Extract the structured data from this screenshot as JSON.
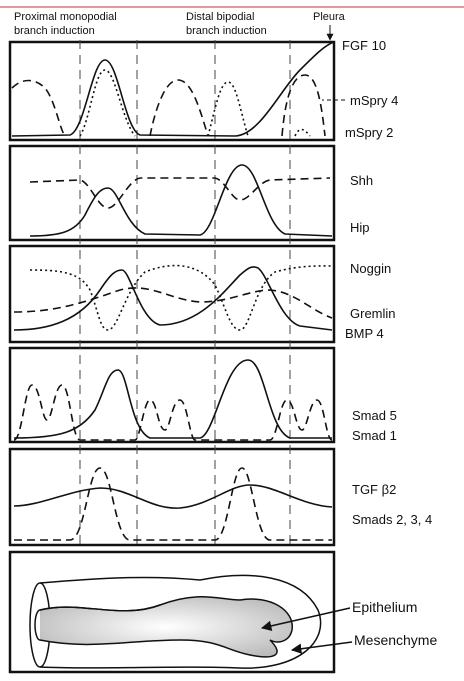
{
  "header": {
    "proximal": [
      "Proximal monopodial",
      "branch induction"
    ],
    "distal": [
      "Distal bipodial",
      "branch induction"
    ],
    "pleura": "Pleura"
  },
  "labels": {
    "fgf10": "FGF 10",
    "mspry4": "mSpry 4",
    "mspry2": "mSpry 2",
    "shh": "Shh",
    "hip": "Hip",
    "noggin": "Noggin",
    "gremlin": "Gremlin",
    "bmp4": "BMP 4",
    "smad5": "Smad 5",
    "smad1": "Smad 1",
    "tgfb2": "TGF β2",
    "smads234": "Smads 2, 3, 4",
    "epithelium": "Epithelium",
    "mesenchyme": "Mesenchyme"
  }
}
